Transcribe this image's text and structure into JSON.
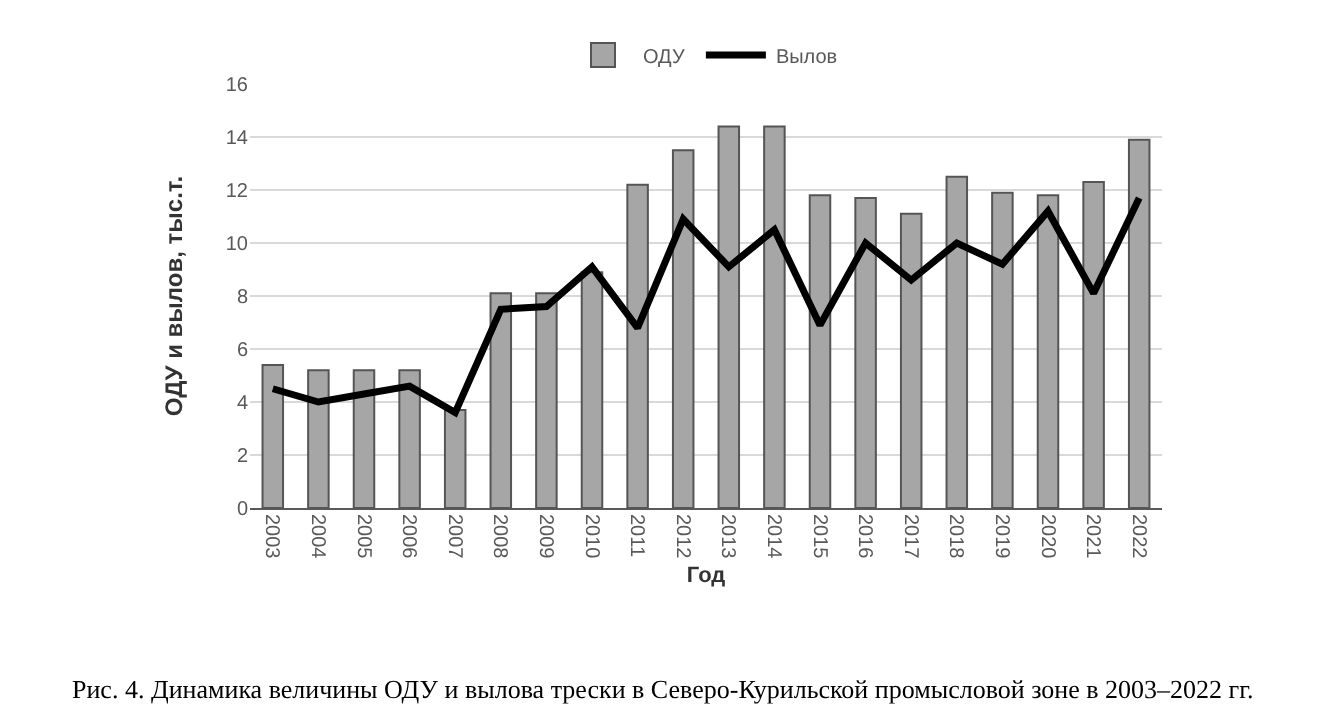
{
  "chart_data": {
    "type": "bar",
    "categories": [
      "2003",
      "2004",
      "2005",
      "2006",
      "2007",
      "2008",
      "2009",
      "2010",
      "2011",
      "2012",
      "2013",
      "2014",
      "2015",
      "2016",
      "2017",
      "2018",
      "2019",
      "2020",
      "2021",
      "2022"
    ],
    "series": [
      {
        "name": "ОДУ",
        "color": "#a6a6a6",
        "values": [
          5.4,
          5.2,
          5.2,
          5.2,
          3.7,
          8.1,
          8.1,
          8.9,
          12.2,
          13.5,
          14.4,
          14.4,
          11.8,
          11.7,
          11.1,
          12.5,
          11.9,
          11.8,
          12.3,
          13.9
        ]
      },
      {
        "name": "Вылов",
        "type": "line",
        "color": "#000000",
        "values": [
          4.5,
          4.0,
          4.3,
          4.6,
          3.6,
          7.5,
          7.6,
          9.1,
          6.8,
          10.9,
          9.1,
          10.5,
          6.9,
          10.0,
          8.6,
          10.0,
          9.2,
          11.2,
          8.1,
          11.7
        ]
      }
    ],
    "xlabel": "Год",
    "ylabel": "ОДУ и вылов, тыс.т.",
    "ylim": [
      0,
      16
    ],
    "yticks": [
      0,
      2,
      4,
      6,
      8,
      10,
      12,
      14,
      16
    ],
    "grid": "y",
    "legend": "top",
    "marker": "none",
    "annotations": [
      "Рис. 4. Динамика величины ОДУ и вылова трески в Северо-Курильской промысловой зоне в 2003–2022 гг."
    ]
  }
}
